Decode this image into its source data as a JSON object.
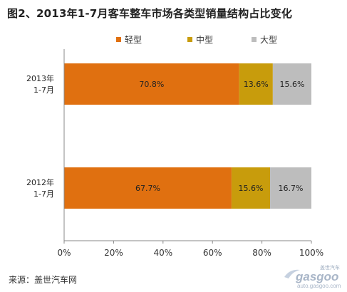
{
  "title": "图2、2013年1-7月客车整车市场各类型销量结构占比变化",
  "source": "来源：盖世汽车网",
  "watermark": {
    "text_main": "gasgoo",
    "text_url": "auto.gasgoo.com",
    "text_cn": "盖世汽车"
  },
  "chart_data": {
    "type": "bar",
    "orientation": "horizontal",
    "stacked": true,
    "percent": true,
    "categories": [
      "2013年 1-7月",
      "2012年 1-7月"
    ],
    "category_lines": [
      [
        "2013年",
        "1-7月"
      ],
      [
        "2012年",
        "1-7月"
      ]
    ],
    "series": [
      {
        "name": "轻型",
        "values": [
          70.8,
          67.7
        ],
        "color": "#E07010"
      },
      {
        "name": "中型",
        "values": [
          13.6,
          15.6
        ],
        "color": "#C89C0C"
      },
      {
        "name": "大型",
        "values": [
          15.6,
          16.7
        ],
        "color": "#BDBDBD"
      }
    ],
    "data_labels": [
      [
        "70.8%",
        "67.7%"
      ],
      [
        "13.6%",
        "15.6%"
      ],
      [
        "15.6%",
        "16.7%"
      ]
    ],
    "xlim": [
      0,
      100
    ],
    "xticks": [
      "0%",
      "20%",
      "40%",
      "60%",
      "80%",
      "100%"
    ],
    "legend": "top",
    "grid": false
  }
}
